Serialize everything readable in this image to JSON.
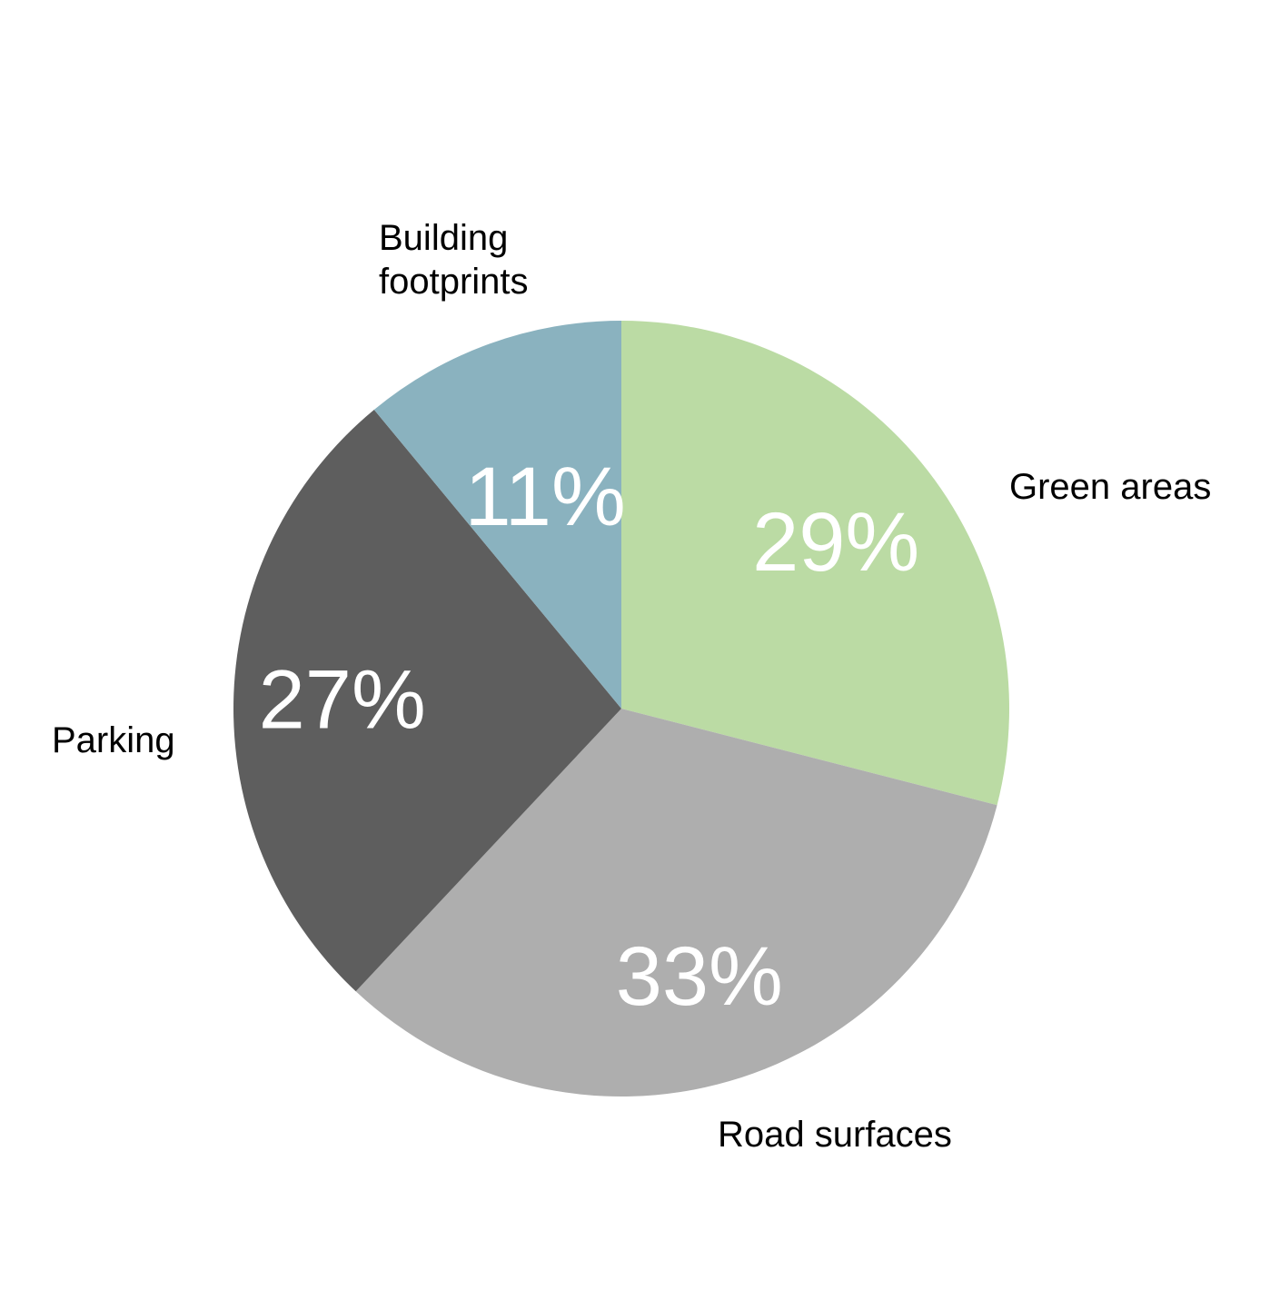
{
  "chart_data": {
    "type": "pie",
    "title": "",
    "start": "12 o'clock",
    "direction": "clockwise",
    "legend": "none",
    "slices": [
      {
        "label": "Green areas",
        "value": 29,
        "value_label": "29%",
        "color": "#bbdba4"
      },
      {
        "label": "Road surfaces",
        "value": 33,
        "value_label": "33%",
        "color": "#aeaeae"
      },
      {
        "label": "Parking",
        "value": 27,
        "value_label": "27%",
        "color": "#5e5e5e"
      },
      {
        "label": "Building footprints",
        "value": 11,
        "value_label": "11%",
        "color": "#8ab2bf"
      }
    ]
  }
}
